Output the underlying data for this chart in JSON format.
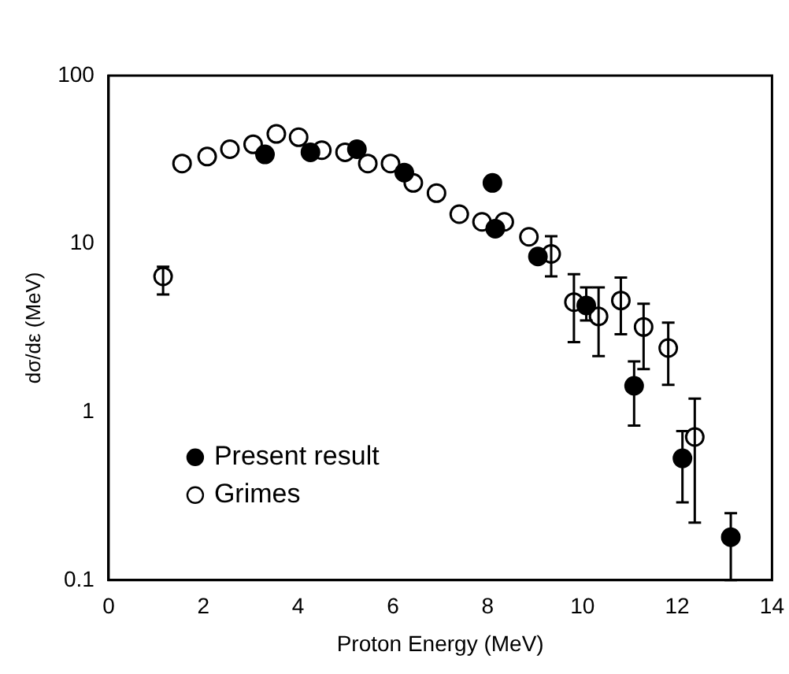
{
  "chart_data": {
    "type": "scatter",
    "xlabel": "Proton Energy (MeV)",
    "ylabel": "dσ/dε (MeV)",
    "xlim": [
      0,
      14
    ],
    "xticks": [
      0,
      2,
      4,
      6,
      8,
      10,
      12,
      14
    ],
    "ylim": [
      0.1,
      100
    ],
    "yticks": [
      0.1,
      1,
      10,
      100
    ],
    "log": "y",
    "grid": false,
    "legend": "bottom left",
    "marker": "circle",
    "series": [
      {
        "name": "Present result",
        "color": "#000000",
        "x": [
          3.3,
          4.26,
          5.24,
          6.24,
          8.1,
          8.16,
          9.06,
          10.08,
          11.09,
          12.11,
          13.13
        ],
        "values": [
          34,
          35,
          36.5,
          26.5,
          23,
          12.3,
          8.4,
          4.3,
          1.43,
          0.53,
          0.18
        ],
        "errors": [
          null,
          null,
          null,
          null,
          null,
          null,
          null,
          [
            3.5,
            5.5
          ],
          [
            0.83,
            2.0
          ],
          [
            0.29,
            0.77
          ],
          [
            0.1,
            0.25
          ]
        ]
      },
      {
        "name": "Grimes",
        "color": "#ffffff",
        "x": [
          1.15,
          1.55,
          2.08,
          2.56,
          3.05,
          3.54,
          4.01,
          4.5,
          4.99,
          5.47,
          5.95,
          6.43,
          6.92,
          7.4,
          7.88,
          8.35,
          8.87,
          9.34,
          9.82,
          10.34,
          10.81,
          11.29,
          11.81,
          12.37
        ],
        "values": [
          6.4,
          30,
          33,
          36.5,
          39,
          45,
          43,
          36,
          35,
          30,
          30,
          23,
          20,
          15,
          13.5,
          13.5,
          11,
          8.7,
          4.5,
          3.7,
          4.6,
          3.2,
          2.4,
          0.71
        ],
        "errors": [
          [
            5,
            7.3
          ],
          null,
          null,
          null,
          null,
          null,
          null,
          null,
          null,
          null,
          null,
          null,
          null,
          null,
          null,
          null,
          null,
          [
            6.4,
            11.1
          ],
          [
            2.6,
            6.6
          ],
          [
            2.15,
            5.5
          ],
          [
            2.9,
            6.3
          ],
          [
            1.8,
            4.4
          ],
          [
            1.45,
            3.4
          ],
          [
            0.22,
            1.2
          ]
        ]
      }
    ]
  }
}
